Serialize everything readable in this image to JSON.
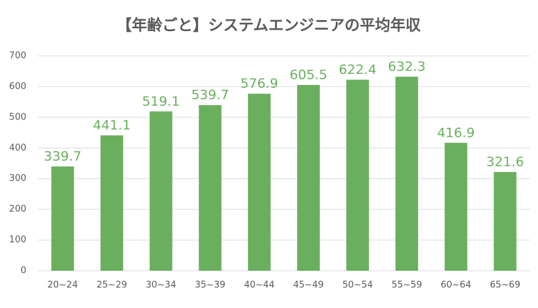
{
  "chart_data": {
    "type": "bar",
    "title": "【年齢ごと】システムエンジニアの平均年収",
    "categories": [
      "20~24",
      "25~29",
      "30~34",
      "35~39",
      "40~44",
      "45~49",
      "50~54",
      "55~59",
      "60~64",
      "65~69"
    ],
    "values": [
      339.7,
      441.1,
      519.1,
      539.7,
      576.9,
      605.5,
      622.4,
      632.3,
      416.9,
      321.6
    ],
    "color": "#6aaf5e",
    "label_color": "#6aaf5e",
    "ylim": [
      0,
      700
    ],
    "yticks": [
      0,
      100,
      200,
      300,
      400,
      500,
      600,
      700
    ],
    "grid": true
  }
}
